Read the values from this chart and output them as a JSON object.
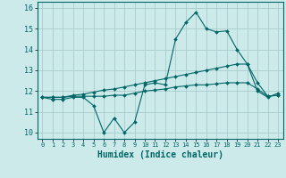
{
  "title": "",
  "xlabel": "Humidex (Indice chaleur)",
  "ylabel": "",
  "background_color": "#cdeaea",
  "grid_color": "#aacccc",
  "line_color": "#006666",
  "xlim": [
    -0.5,
    23.5
  ],
  "ylim": [
    9.7,
    16.3
  ],
  "yticks": [
    10,
    11,
    12,
    13,
    14,
    15,
    16
  ],
  "xticks": [
    0,
    1,
    2,
    3,
    4,
    5,
    6,
    7,
    8,
    9,
    10,
    11,
    12,
    13,
    14,
    15,
    16,
    17,
    18,
    19,
    20,
    21,
    22,
    23
  ],
  "series1_x": [
    0,
    1,
    2,
    3,
    4,
    5,
    6,
    7,
    8,
    9,
    10,
    11,
    12,
    13,
    14,
    15,
    16,
    17,
    18,
    19,
    20,
    21,
    22,
    23
  ],
  "series1_y": [
    11.7,
    11.6,
    11.6,
    11.7,
    11.7,
    11.3,
    10.0,
    10.7,
    10.0,
    10.5,
    12.3,
    12.4,
    12.3,
    14.5,
    15.3,
    15.8,
    15.0,
    14.85,
    14.9,
    14.0,
    13.3,
    12.0,
    11.7,
    11.9
  ],
  "series2_x": [
    0,
    1,
    2,
    3,
    4,
    5,
    6,
    7,
    8,
    9,
    10,
    11,
    12,
    13,
    14,
    15,
    16,
    17,
    18,
    19,
    20,
    21,
    22,
    23
  ],
  "series2_y": [
    11.7,
    11.7,
    11.7,
    11.8,
    11.85,
    11.95,
    12.05,
    12.1,
    12.2,
    12.3,
    12.4,
    12.5,
    12.6,
    12.7,
    12.8,
    12.9,
    13.0,
    13.1,
    13.2,
    13.3,
    13.3,
    12.4,
    11.75,
    11.8
  ],
  "series3_x": [
    0,
    1,
    2,
    3,
    4,
    5,
    6,
    7,
    8,
    9,
    10,
    11,
    12,
    13,
    14,
    15,
    16,
    17,
    18,
    19,
    20,
    21,
    22,
    23
  ],
  "series3_y": [
    11.7,
    11.7,
    11.7,
    11.75,
    11.75,
    11.75,
    11.75,
    11.8,
    11.8,
    11.9,
    12.0,
    12.05,
    12.1,
    12.2,
    12.25,
    12.3,
    12.3,
    12.35,
    12.4,
    12.4,
    12.4,
    12.1,
    11.75,
    11.8
  ]
}
